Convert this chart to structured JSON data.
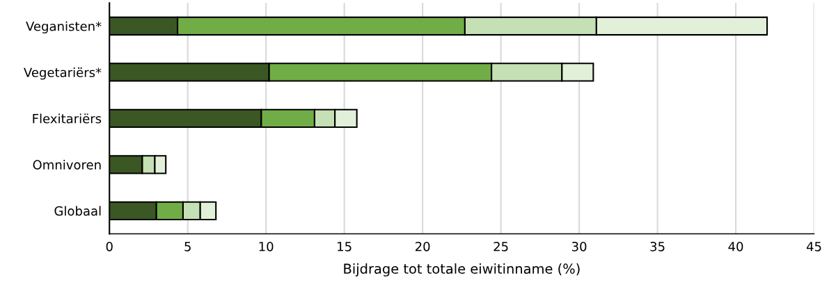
{
  "chart_data": {
    "type": "bar",
    "orientation": "horizontal",
    "stacked": true,
    "xlabel": "Bijdrage tot totale eiwitinname (%)",
    "categories": [
      "Veganisten*",
      "Vegetariërs*",
      "Flexitariërs",
      "Omnivoren",
      "Globaal"
    ],
    "series": [
      {
        "color": "#3b5724",
        "values": [
          4.35,
          10.2,
          9.7,
          2.1,
          3.0
        ]
      },
      {
        "color": "#70ad47",
        "values": [
          18.35,
          14.2,
          3.4,
          null,
          1.7
        ]
      },
      {
        "color": "#c5e0b4",
        "values": [
          8.4,
          4.5,
          1.3,
          0.8,
          1.1
        ]
      },
      {
        "color": "#e2f0d9",
        "values": [
          10.9,
          2.0,
          1.4,
          0.7,
          1.0
        ]
      }
    ],
    "xlim": [
      0,
      45
    ],
    "xticks": [
      0,
      5,
      10,
      15,
      20,
      25,
      30,
      35,
      40,
      45
    ],
    "grid": "x"
  }
}
